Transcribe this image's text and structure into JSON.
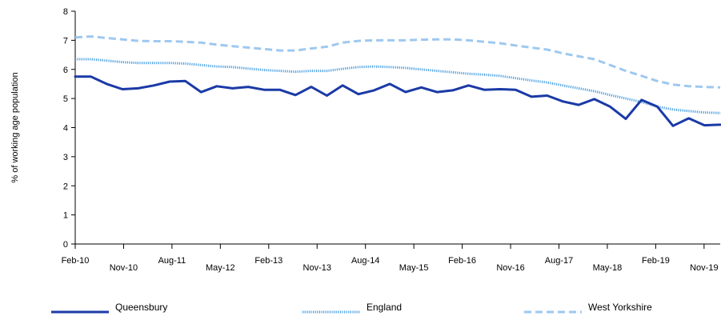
{
  "chart_data": {
    "type": "line",
    "title": "",
    "xlabel": "",
    "ylabel": "% of working age population",
    "ylim": [
      0,
      8
    ],
    "yticks": [
      "0",
      "1",
      "2",
      "3",
      "4",
      "5",
      "6",
      "7",
      "8"
    ],
    "x_start": "Feb-10",
    "x_end": "Feb-20",
    "x_tick_labels": [
      "Feb-10",
      "Nov-10",
      "Aug-11",
      "May-12",
      "Feb-13",
      "Nov-13",
      "Aug-14",
      "May-15",
      "Feb-16",
      "Nov-16",
      "Aug-17",
      "May-18",
      "Feb-19",
      "Nov-19"
    ],
    "grid": false,
    "legend_position": "bottom",
    "series": [
      {
        "name": "Queensbury",
        "color": "#1a3aa6",
        "style": "solid",
        "values": [
          5.75,
          5.75,
          5.5,
          5.32,
          5.35,
          5.45,
          5.58,
          5.6,
          5.22,
          5.42,
          5.35,
          5.4,
          5.3,
          5.3,
          5.12,
          5.4,
          5.1,
          5.45,
          5.15,
          5.28,
          5.5,
          5.22,
          5.38,
          5.22,
          5.28,
          5.45,
          5.3,
          5.32,
          5.3,
          5.06,
          5.1,
          4.9,
          4.78,
          4.98,
          4.72,
          4.3,
          4.95,
          4.72,
          4.06,
          4.32,
          4.08,
          4.1
        ]
      },
      {
        "name": "England",
        "color": "#4b9fe0",
        "style": "dotted",
        "values": [
          6.35,
          6.35,
          6.3,
          6.25,
          6.22,
          6.22,
          6.22,
          6.2,
          6.15,
          6.1,
          6.08,
          6.03,
          5.98,
          5.95,
          5.92,
          5.95,
          5.95,
          6.02,
          6.08,
          6.1,
          6.08,
          6.05,
          6.0,
          5.95,
          5.9,
          5.85,
          5.82,
          5.78,
          5.7,
          5.62,
          5.55,
          5.45,
          5.35,
          5.25,
          5.12,
          5.0,
          4.88,
          4.72,
          4.62,
          4.57,
          4.52,
          4.5
        ]
      },
      {
        "name": "West Yorkshire",
        "color": "#9ec8f0",
        "style": "dashed",
        "values": [
          7.1,
          7.13,
          7.08,
          7.03,
          6.98,
          6.97,
          6.97,
          6.95,
          6.92,
          6.85,
          6.8,
          6.75,
          6.7,
          6.65,
          6.65,
          6.72,
          6.78,
          6.92,
          6.98,
          7.0,
          7.0,
          7.0,
          7.02,
          7.03,
          7.03,
          7.0,
          6.95,
          6.9,
          6.82,
          6.75,
          6.68,
          6.55,
          6.45,
          6.35,
          6.15,
          5.95,
          5.78,
          5.6,
          5.48,
          5.42,
          5.4,
          5.38
        ]
      }
    ]
  }
}
